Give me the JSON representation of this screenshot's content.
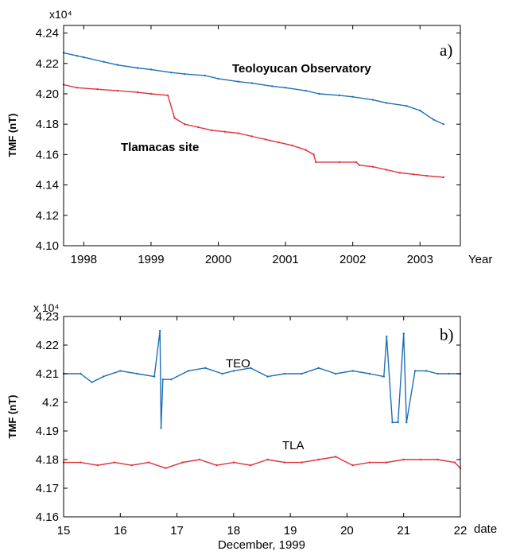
{
  "chart_data": [
    {
      "type": "line",
      "panel_label": "a)",
      "exponent_label": "x10⁴",
      "ylabel": "TMF (nT)",
      "xlabel": "Year",
      "xlim": [
        1997.7,
        2003.6
      ],
      "ylim": [
        4.1,
        4.245
      ],
      "x_ticks": [
        1998,
        1999,
        2000,
        2001,
        2002,
        2003
      ],
      "x_tick_labels": [
        "1998",
        "1999",
        "2000",
        "2001",
        "2002",
        "2003"
      ],
      "y_ticks": [
        4.1,
        4.12,
        4.14,
        4.16,
        4.18,
        4.2,
        4.22,
        4.24
      ],
      "y_tick_labels": [
        "4.10",
        "4.12",
        "4.14",
        "4.16",
        "4.18",
        "4.20",
        "4.22",
        "4.24"
      ],
      "grid": false,
      "series": [
        {
          "name": "Teoloyucan Observatory",
          "color": "#1f6fb4",
          "x": [
            1997.7,
            1997.9,
            1998.0,
            1998.3,
            1998.5,
            1998.8,
            1999.0,
            1999.3,
            1999.5,
            1999.8,
            2000.0,
            2000.3,
            2000.5,
            2000.8,
            2001.0,
            2001.3,
            2001.5,
            2001.8,
            2002.0,
            2002.3,
            2002.5,
            2002.8,
            2003.0,
            2003.2,
            2003.35
          ],
          "y": [
            4.227,
            4.225,
            4.224,
            4.221,
            4.219,
            4.217,
            4.216,
            4.214,
            4.213,
            4.212,
            4.21,
            4.208,
            4.207,
            4.205,
            4.204,
            4.202,
            4.2,
            4.199,
            4.198,
            4.196,
            4.194,
            4.192,
            4.189,
            4.183,
            4.18
          ]
        },
        {
          "name": "Tlamacas site",
          "color": "#e0303a",
          "x": [
            1997.7,
            1997.9,
            1998.2,
            1998.5,
            1998.8,
            1999.0,
            1999.25,
            1999.35,
            1999.5,
            1999.7,
            1999.9,
            2000.1,
            2000.3,
            2000.5,
            2000.7,
            2000.9,
            2001.1,
            2001.3,
            2001.42,
            2001.45,
            2001.8,
            2002.05,
            2002.1,
            2002.3,
            2002.5,
            2002.7,
            2002.9,
            2003.1,
            2003.35
          ],
          "y": [
            4.206,
            4.204,
            4.203,
            4.202,
            4.201,
            4.2,
            4.199,
            4.184,
            4.18,
            4.178,
            4.176,
            4.175,
            4.174,
            4.172,
            4.17,
            4.168,
            4.166,
            4.163,
            4.16,
            4.155,
            4.155,
            4.155,
            4.153,
            4.152,
            4.15,
            4.148,
            4.147,
            4.146,
            4.145
          ]
        }
      ],
      "annotations": [
        "Teoloyucan Observatory",
        "Tlamacas site"
      ]
    },
    {
      "type": "line",
      "panel_label": "b)",
      "exponent_label": "x 10⁴",
      "ylabel": "TMF (nT)",
      "xlabel": "date",
      "xlabel2": "December, 1999",
      "xlim": [
        15,
        22
      ],
      "ylim": [
        4.16,
        4.23
      ],
      "x_ticks": [
        15,
        16,
        17,
        18,
        19,
        20,
        21,
        22
      ],
      "x_tick_labels": [
        "15",
        "16",
        "17",
        "18",
        "19",
        "20",
        "21",
        "22"
      ],
      "y_ticks": [
        4.16,
        4.17,
        4.18,
        4.19,
        4.2,
        4.21,
        4.22,
        4.23
      ],
      "y_tick_labels": [
        "4.16",
        "4.17",
        "4.18",
        "4.19",
        "4.2",
        "4.21",
        "4.22",
        "4.23"
      ],
      "grid": false,
      "series": [
        {
          "name": "TEO",
          "color": "#1f6fb4",
          "x": [
            15.0,
            15.3,
            15.5,
            15.7,
            16.0,
            16.3,
            16.6,
            16.7,
            16.72,
            16.75,
            16.9,
            17.2,
            17.5,
            17.8,
            18.0,
            18.3,
            18.6,
            18.9,
            19.2,
            19.5,
            19.8,
            20.1,
            20.4,
            20.65,
            20.7,
            20.8,
            20.9,
            21.0,
            21.05,
            21.2,
            21.4,
            21.6,
            21.8,
            22.0
          ],
          "y": [
            4.21,
            4.21,
            4.207,
            4.209,
            4.211,
            4.21,
            4.209,
            4.225,
            4.191,
            4.208,
            4.208,
            4.211,
            4.212,
            4.21,
            4.211,
            4.212,
            4.209,
            4.21,
            4.21,
            4.212,
            4.21,
            4.211,
            4.21,
            4.209,
            4.223,
            4.193,
            4.193,
            4.224,
            4.193,
            4.211,
            4.211,
            4.21,
            4.21,
            4.21
          ]
        },
        {
          "name": "TLA",
          "color": "#e0303a",
          "x": [
            15.0,
            15.3,
            15.6,
            15.9,
            16.2,
            16.5,
            16.8,
            17.1,
            17.4,
            17.7,
            18.0,
            18.3,
            18.6,
            18.9,
            19.2,
            19.5,
            19.8,
            20.1,
            20.4,
            20.7,
            21.0,
            21.3,
            21.6,
            21.9,
            22.0
          ],
          "y": [
            4.179,
            4.179,
            4.178,
            4.179,
            4.178,
            4.179,
            4.177,
            4.179,
            4.18,
            4.178,
            4.179,
            4.178,
            4.18,
            4.179,
            4.179,
            4.18,
            4.181,
            4.178,
            4.179,
            4.179,
            4.18,
            4.18,
            4.18,
            4.179,
            4.177
          ]
        }
      ],
      "annotations": [
        "TEO",
        "TLA"
      ]
    }
  ]
}
